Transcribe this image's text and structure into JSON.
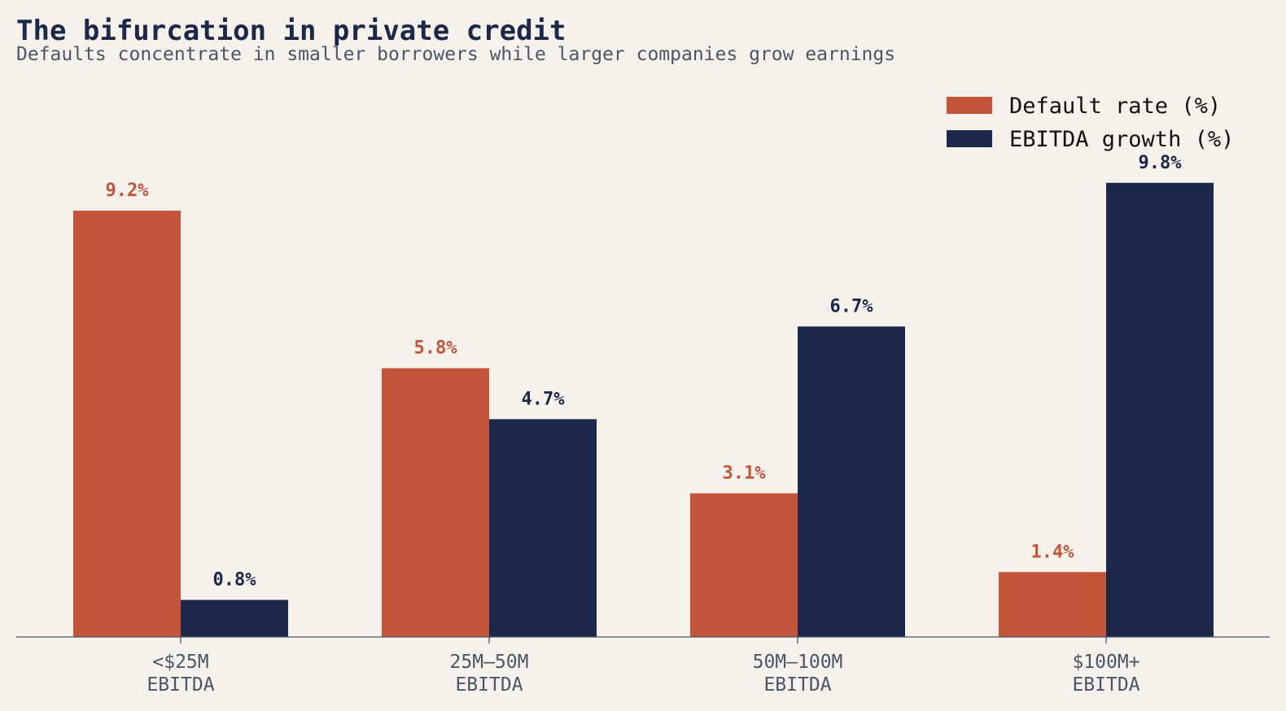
{
  "chart_data": {
    "type": "bar",
    "title": "The bifurcation in private credit",
    "subtitle": "Defaults concentrate in smaller borrowers while larger companies grow earnings",
    "categories": [
      [
        "<$25M",
        "EBITDA"
      ],
      [
        "25M–50M",
        "EBITDA"
      ],
      [
        "50M–100M",
        "EBITDA"
      ],
      [
        "$100M+",
        "EBITDA"
      ]
    ],
    "series": [
      {
        "name": "Default rate (%)",
        "color": "#c4553a",
        "values": [
          9.2,
          5.8,
          3.1,
          1.4
        ],
        "labels": [
          "9.2%",
          "5.8%",
          "3.1%",
          "1.4%"
        ]
      },
      {
        "name": "EBITDA growth (%)",
        "color": "#1b2849",
        "values": [
          0.8,
          4.7,
          6.7,
          9.8
        ],
        "labels": [
          "0.8%",
          "4.7%",
          "6.7%",
          "9.8%"
        ]
      }
    ],
    "ylim": [
      0,
      11.2
    ],
    "grid": false,
    "legend": "top-right",
    "colors": {
      "title": "#1b2849",
      "subtitle": "#4a5568",
      "tick": "#4a5568",
      "axis": "#4a5568",
      "background": "#f6f2eb"
    }
  }
}
